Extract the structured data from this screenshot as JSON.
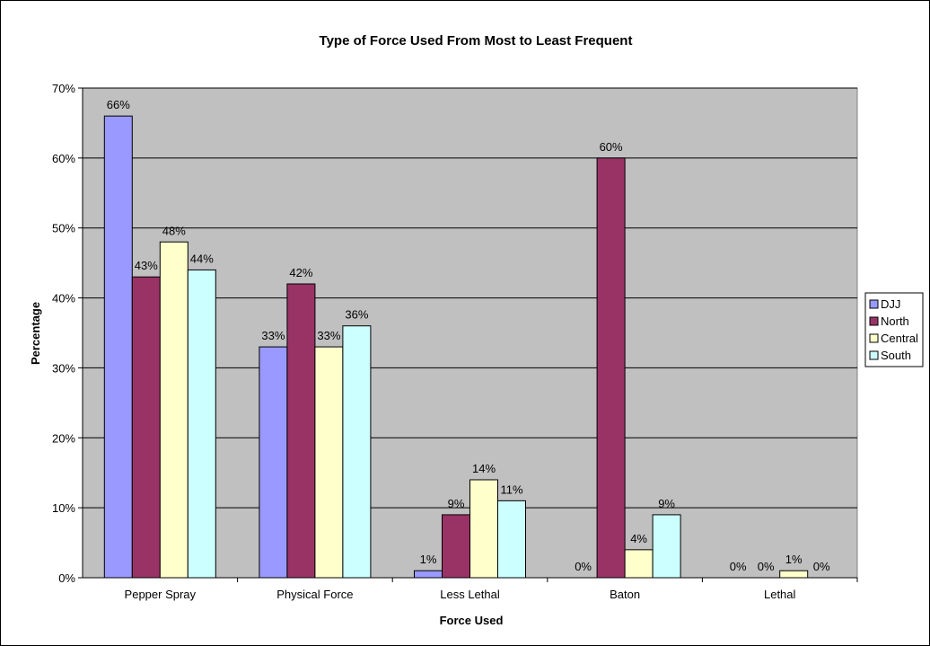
{
  "chart_data": {
    "type": "bar",
    "title": "Type of Force Used From Most to Least Frequent",
    "xlabel": "Force Used",
    "ylabel": "Percentage",
    "ylim": [
      0,
      70
    ],
    "yticks": [
      "0%",
      "10%",
      "20%",
      "30%",
      "40%",
      "50%",
      "60%",
      "70%"
    ],
    "categories": [
      "Pepper Spray",
      "Physical Force",
      "Less Lethal",
      "Baton",
      "Lethal"
    ],
    "series": [
      {
        "name": "DJJ",
        "color": "#9999ff",
        "values": [
          66,
          33,
          1,
          0,
          0
        ],
        "labels": [
          "66%",
          "33%",
          "1%",
          "0%",
          "0%"
        ]
      },
      {
        "name": "North",
        "color": "#993366",
        "values": [
          43,
          42,
          9,
          60,
          0
        ],
        "labels": [
          "43%",
          "42%",
          "9%",
          "60%",
          "0%"
        ]
      },
      {
        "name": "Central",
        "color": "#ffffcc",
        "values": [
          48,
          33,
          14,
          4,
          1
        ],
        "labels": [
          "48%",
          "33%",
          "14%",
          "4%",
          "1%"
        ]
      },
      {
        "name": "South",
        "color": "#ccffff",
        "values": [
          44,
          36,
          11,
          9,
          0
        ],
        "labels": [
          "44%",
          "36%",
          "11%",
          "9%",
          "0%"
        ]
      }
    ],
    "plot_background": "#c0c0c0",
    "grid": true,
    "legend_position": "right"
  }
}
